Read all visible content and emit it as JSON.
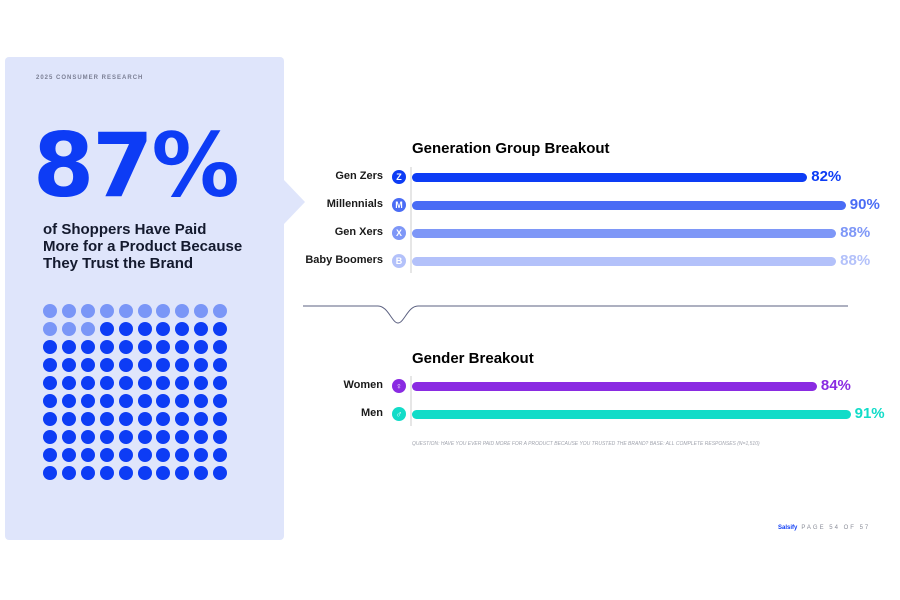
{
  "eyebrow": "2025 CONSUMER RESEARCH",
  "headline_stat": "87%",
  "headline_text": "of Shoppers Have Paid More for a Product Because They Trust the Brand",
  "dots": {
    "total": 100,
    "highlighted": 87,
    "color_on": "#0d3cf5",
    "color_off": "#7a96f7"
  },
  "chart_data": [
    {
      "type": "bar",
      "title": "Generation Group Breakout",
      "categories": [
        "Gen Zers",
        "Millennials",
        "Gen Xers",
        "Baby Boomers"
      ],
      "badges": [
        "Z",
        "M",
        "X",
        "B"
      ],
      "values": [
        82,
        90,
        88,
        88
      ],
      "labels": [
        "82%",
        "90%",
        "88%",
        "88%"
      ],
      "colors": [
        "#0d3cf5",
        "#4a6cf5",
        "#7e97f7",
        "#b3c1fa"
      ],
      "xlim": [
        0,
        100
      ]
    },
    {
      "type": "bar",
      "title": "Gender Breakout",
      "categories": [
        "Women",
        "Men"
      ],
      "badges": [
        "♀",
        "♂"
      ],
      "values": [
        84,
        91
      ],
      "labels": [
        "84%",
        "91%"
      ],
      "colors": [
        "#8a2be2",
        "#12dcc8"
      ],
      "xlim": [
        0,
        100
      ]
    }
  ],
  "question": "QUESTION: HAVE YOU EVER PAID MORE FOR A PRODUCT BECAUSE YOU TRUSTED THE BRAND? BASE: ALL COMPLETE RESPONSES (N=1,510)",
  "footer": {
    "brand": "Salsify",
    "page": "PAGE 54 OF 57"
  }
}
